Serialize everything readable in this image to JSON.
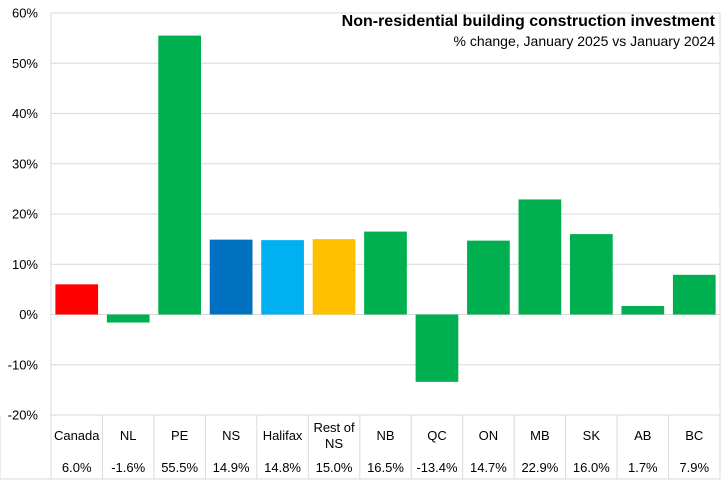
{
  "chart_data": {
    "type": "bar",
    "title": "Non-residential building construction investment",
    "subtitle": "% change, January 2025 vs January 2024",
    "categories": [
      "Canada",
      "NL",
      "PE",
      "NS",
      "Halifax",
      "Rest of NS",
      "NB",
      "QC",
      "ON",
      "MB",
      "SK",
      "AB",
      "BC"
    ],
    "values": [
      6.0,
      -1.6,
      55.5,
      14.9,
      14.8,
      15.0,
      16.5,
      -13.4,
      14.7,
      22.9,
      16.0,
      1.7,
      7.9
    ],
    "value_labels": [
      "6.0%",
      "-1.6%",
      "55.5%",
      "14.9%",
      "14.8%",
      "15.0%",
      "16.5%",
      "-13.4%",
      "14.7%",
      "22.9%",
      "16.0%",
      "1.7%",
      "7.9%"
    ],
    "bar_colors": [
      "#ff0000",
      "#00b050",
      "#00b050",
      "#0070c0",
      "#00b0f0",
      "#ffc000",
      "#00b050",
      "#00b050",
      "#00b050",
      "#00b050",
      "#00b050",
      "#00b050",
      "#00b050"
    ],
    "ylim": [
      -20,
      60
    ],
    "yticks": [
      -20,
      -10,
      0,
      10,
      20,
      30,
      40,
      50,
      60
    ],
    "ytick_labels": [
      "-20%",
      "-10%",
      "0%",
      "10%",
      "20%",
      "30%",
      "40%",
      "50%",
      "60%"
    ],
    "grid": true,
    "legend": "none",
    "data_table": true
  }
}
